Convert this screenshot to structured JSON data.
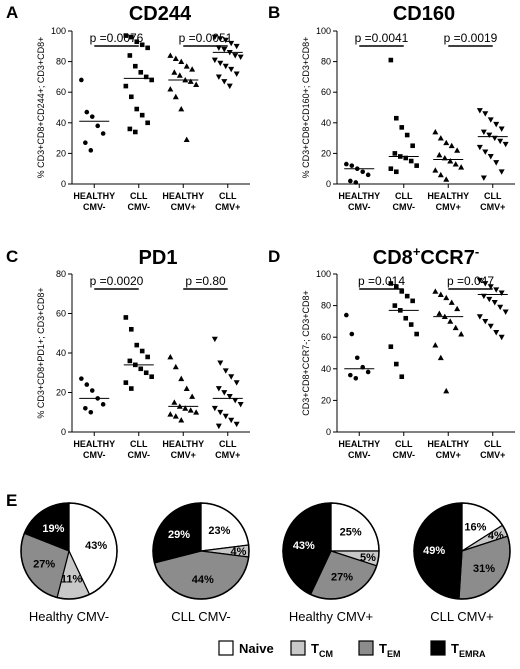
{
  "figure_letter_e": "E",
  "colors": {
    "naive": "#ffffff",
    "tcm": "#c8c8c8",
    "tem": "#8c8c8c",
    "temra": "#000000",
    "marker": "#000000"
  },
  "legend": {
    "items": [
      {
        "key": "naive",
        "label": "Naive",
        "sub": ""
      },
      {
        "key": "tcm",
        "label": "T",
        "sub": "CM"
      },
      {
        "key": "tem",
        "label": "T",
        "sub": "EM"
      },
      {
        "key": "temra",
        "label": "T",
        "sub": "EMRA"
      }
    ]
  },
  "chart_data": [
    {
      "type": "scatter",
      "letter": "A",
      "title": "CD244",
      "title_sup": "",
      "title_after": "",
      "ylabel": "% CD3+CD8+CD244+; CD3+CD8+",
      "ylim": [
        0,
        100
      ],
      "yticks": [
        0,
        20,
        40,
        60,
        80,
        100
      ],
      "categories": [
        [
          "HEALTHY",
          "CMV-"
        ],
        [
          "CLL",
          "CMV-"
        ],
        [
          "HEALTHY",
          "CMV+"
        ],
        [
          "CLL",
          "CMV+"
        ]
      ],
      "markers": [
        "circle",
        "square",
        "triangle",
        "triangle-down"
      ],
      "medians": [
        41,
        69,
        68,
        86
      ],
      "points": [
        [
          68,
          47,
          44,
          38,
          33,
          27,
          22
        ],
        [
          97,
          96,
          93,
          91,
          89,
          84,
          77,
          73,
          70,
          68,
          64,
          57,
          49,
          45,
          40,
          36,
          34
        ],
        [
          84,
          82,
          80,
          77,
          75,
          73,
          71,
          68,
          67,
          65,
          62,
          57,
          49,
          29
        ],
        [
          96,
          95,
          94,
          92,
          90,
          89,
          88,
          86,
          84,
          83,
          81,
          79,
          77,
          75,
          72,
          70,
          67,
          64
        ]
      ],
      "comparisons": [
        {
          "from": 0,
          "to": 1,
          "label": "p =0.0076"
        },
        {
          "from": 2,
          "to": 3,
          "label": "p =0.0051"
        }
      ]
    },
    {
      "type": "scatter",
      "letter": "B",
      "title": "CD160",
      "title_sup": "",
      "title_after": "",
      "ylabel": "% CD3+CD8+CD160+; CD3+CD8+",
      "ylim": [
        0,
        100
      ],
      "yticks": [
        0,
        20,
        40,
        60,
        80,
        100
      ],
      "categories": [
        [
          "HEALTHY",
          "CMV-"
        ],
        [
          "CLL",
          "CMV-"
        ],
        [
          "HEALTHY",
          "CMV+"
        ],
        [
          "CLL",
          "CMV+"
        ]
      ],
      "markers": [
        "circle",
        "square",
        "triangle",
        "triangle-down"
      ],
      "medians": [
        10,
        18,
        16,
        31
      ],
      "points": [
        [
          13,
          12,
          10,
          8,
          6,
          2,
          1
        ],
        [
          81,
          43,
          37,
          32,
          25,
          20,
          18,
          17,
          15,
          12,
          10,
          8
        ],
        [
          34,
          30,
          27,
          25,
          22,
          19,
          17,
          15,
          13,
          11,
          9,
          6,
          3
        ],
        [
          48,
          46,
          42,
          39,
          36,
          34,
          32,
          30,
          28,
          26,
          24,
          21,
          18,
          14,
          8,
          4
        ]
      ],
      "comparisons": [
        {
          "from": 0,
          "to": 1,
          "label": "p =0.0041"
        },
        {
          "from": 2,
          "to": 3,
          "label": "p =0.0019"
        }
      ]
    },
    {
      "type": "scatter",
      "letter": "C",
      "title": "PD1",
      "title_sup": "",
      "title_after": "",
      "ylabel": "% CD3+CD8+PD1+; CD3+CD8+",
      "ylim": [
        0,
        80
      ],
      "yticks": [
        0,
        20,
        40,
        60,
        80
      ],
      "categories": [
        [
          "HEALTHY",
          "CMV-"
        ],
        [
          "CLL",
          "CMV-"
        ],
        [
          "HEALTHY",
          "CMV+"
        ],
        [
          "CLL",
          "CMV+"
        ]
      ],
      "markers": [
        "circle",
        "square",
        "triangle",
        "triangle-down"
      ],
      "medians": [
        17,
        34,
        13,
        17
      ],
      "points": [
        [
          27,
          24,
          21,
          17,
          14,
          12,
          10
        ],
        [
          58,
          52,
          44,
          41,
          38,
          36,
          34,
          32,
          30,
          28,
          25,
          22
        ],
        [
          38,
          33,
          27,
          22,
          18,
          15,
          13,
          12,
          11,
          10,
          9,
          8,
          6
        ],
        [
          47,
          35,
          31,
          28,
          25,
          22,
          20,
          18,
          16,
          14,
          12,
          10,
          8,
          6,
          4,
          3
        ]
      ],
      "comparisons": [
        {
          "from": 0,
          "to": 1,
          "label": "p =0.0020"
        },
        {
          "from": 2,
          "to": 3,
          "label": "p =0.80"
        }
      ]
    },
    {
      "type": "scatter",
      "letter": "D",
      "title": "CD8",
      "title_sup": "+",
      "title_after": "CCR7",
      "title_sup2": "-",
      "ylabel": "CD3+CD8+CCR7-; CD3+CD8+",
      "ylim": [
        0,
        100
      ],
      "yticks": [
        0,
        20,
        40,
        60,
        80,
        100
      ],
      "categories": [
        [
          "HEALTHY",
          "CMV-"
        ],
        [
          "CLL",
          "CMV-"
        ],
        [
          "HEALTHY",
          "CMV+"
        ],
        [
          "CLL",
          "CMV+"
        ]
      ],
      "markers": [
        "circle",
        "square",
        "triangle",
        "triangle-down"
      ],
      "medians": [
        40,
        77,
        73,
        87
      ],
      "points": [
        [
          74,
          62,
          47,
          41,
          38,
          36,
          34
        ],
        [
          94,
          92,
          89,
          86,
          83,
          80,
          77,
          72,
          68,
          62,
          54,
          43,
          35
        ],
        [
          89,
          87,
          85,
          82,
          78,
          75,
          73,
          70,
          66,
          62,
          55,
          47,
          26
        ],
        [
          96,
          94,
          92,
          90,
          88,
          86,
          84,
          82,
          79,
          76,
          73,
          70,
          67,
          63,
          60
        ]
      ],
      "comparisons": [
        {
          "from": 0,
          "to": 1,
          "label": "p =0.014"
        },
        {
          "from": 2,
          "to": 3,
          "label": "p =0.047"
        }
      ]
    },
    {
      "type": "pie",
      "name": "Healthy CMV-",
      "slices": [
        {
          "key": "naive",
          "value": 43,
          "label": "43%"
        },
        {
          "key": "tcm",
          "value": 11,
          "label": "11%"
        },
        {
          "key": "tem",
          "value": 27,
          "label": "27%"
        },
        {
          "key": "temra",
          "value": 19,
          "label": "19%"
        }
      ]
    },
    {
      "type": "pie",
      "name": "CLL CMV-",
      "slices": [
        {
          "key": "naive",
          "value": 23,
          "label": "23%"
        },
        {
          "key": "tcm",
          "value": 4,
          "label": "4%"
        },
        {
          "key": "tem",
          "value": 44,
          "label": "44%"
        },
        {
          "key": "temra",
          "value": 29,
          "label": "29%"
        }
      ]
    },
    {
      "type": "pie",
      "name": "Healthy CMV+",
      "slices": [
        {
          "key": "naive",
          "value": 25,
          "label": "25%"
        },
        {
          "key": "tcm",
          "value": 5,
          "label": "5%"
        },
        {
          "key": "tem",
          "value": 27,
          "label": "27%"
        },
        {
          "key": "temra",
          "value": 43,
          "label": "43%"
        }
      ]
    },
    {
      "type": "pie",
      "name": "CLL CMV+",
      "slices": [
        {
          "key": "naive",
          "value": 16,
          "label": "16%"
        },
        {
          "key": "tcm",
          "value": 4,
          "label": "4%"
        },
        {
          "key": "tem",
          "value": 31,
          "label": "31%"
        },
        {
          "key": "temra",
          "value": 49,
          "label": "49%"
        }
      ]
    }
  ]
}
